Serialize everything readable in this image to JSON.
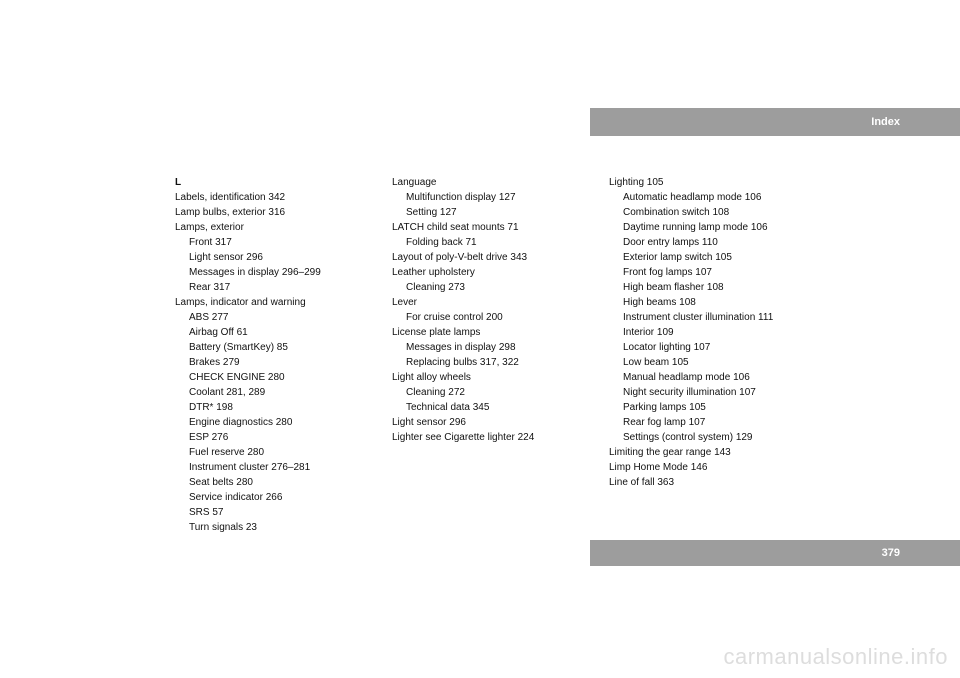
{
  "header": {
    "title": "Index"
  },
  "page": {
    "number": "379"
  },
  "watermark": "carmanualsonline.info",
  "col1": {
    "letter": "L",
    "e1": "Labels, identification 342",
    "e2": "Lamp bulbs, exterior 316",
    "e3": "Lamps, exterior",
    "e3s1": "Front 317",
    "e3s2": "Light sensor 296",
    "e3s3": "Messages in display 296–299",
    "e3s4": "Rear 317",
    "e4": "Lamps, indicator and warning",
    "e4s1": "ABS 277",
    "e4s2": "Airbag Off 61",
    "e4s3": "Battery (SmartKey) 85",
    "e4s4": "Brakes 279",
    "e4s5": "CHECK ENGINE 280",
    "e4s6": "Coolant 281, 289",
    "e4s7": "DTR* 198",
    "e4s8": "Engine diagnostics 280",
    "e4s9": "ESP 276",
    "e4s10": "Fuel reserve 280",
    "e4s11": "Instrument cluster 276–281",
    "e4s12": "Seat belts 280",
    "e4s13": "Service indicator 266",
    "e4s14": "SRS 57",
    "e4s15": "Turn signals 23"
  },
  "col2": {
    "e1": "Language",
    "e1s1": "Multifunction display 127",
    "e1s2": "Setting 127",
    "e2": "LATCH child seat mounts 71",
    "e2s1": "Folding back 71",
    "e3": "Layout of poly-V-belt drive 343",
    "e4": "Leather upholstery",
    "e4s1": "Cleaning 273",
    "e5": "Lever",
    "e5s1": "For cruise control 200",
    "e6": "License plate lamps",
    "e6s1": "Messages in display 298",
    "e6s2": "Replacing bulbs 317, 322",
    "e7": "Light alloy wheels",
    "e7s1": "Cleaning 272",
    "e7s2": "Technical data 345",
    "e8": "Light sensor 296",
    "e9": "Lighter see Cigarette lighter 224"
  },
  "col3": {
    "e1": "Lighting 105",
    "e1s1": "Automatic headlamp mode 106",
    "e1s2": "Combination switch 108",
    "e1s3": "Daytime running lamp mode 106",
    "e1s4": "Door entry lamps 110",
    "e1s5": "Exterior lamp switch 105",
    "e1s6": "Front fog lamps 107",
    "e1s7": "High beam flasher 108",
    "e1s8": "High beams 108",
    "e1s9": "Instrument cluster illumination 111",
    "e1s10": "Interior 109",
    "e1s11": "Locator lighting 107",
    "e1s12": "Low beam 105",
    "e1s13": "Manual headlamp mode 106",
    "e1s14": "Night security illumination 107",
    "e1s15": "Parking lamps 105",
    "e1s16": "Rear fog lamp 107",
    "e1s17": "Settings (control system) 129",
    "e2": "Limiting the gear range 143",
    "e3": "Limp Home Mode 146",
    "e4": "Line of fall 363"
  }
}
